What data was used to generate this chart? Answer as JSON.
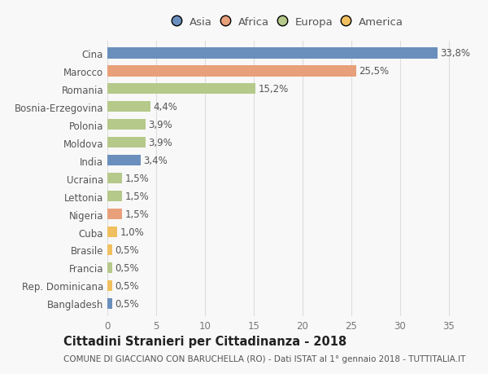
{
  "categories": [
    "Bangladesh",
    "Rep. Dominicana",
    "Francia",
    "Brasile",
    "Cuba",
    "Nigeria",
    "Lettonia",
    "Ucraina",
    "India",
    "Moldova",
    "Polonia",
    "Bosnia-Erzegovina",
    "Romania",
    "Marocco",
    "Cina"
  ],
  "values": [
    0.5,
    0.5,
    0.5,
    0.5,
    1.0,
    1.5,
    1.5,
    1.5,
    3.4,
    3.9,
    3.9,
    4.4,
    15.2,
    25.5,
    33.8
  ],
  "colors": [
    "#6a8fbd",
    "#f0c060",
    "#b5c98a",
    "#f0c060",
    "#f0c060",
    "#e8a07a",
    "#b5c98a",
    "#b5c98a",
    "#6a8fbd",
    "#b5c98a",
    "#b5c98a",
    "#b5c98a",
    "#b5c98a",
    "#e8a07a",
    "#6a8fbd"
  ],
  "labels": [
    "0,5%",
    "0,5%",
    "0,5%",
    "0,5%",
    "1,0%",
    "1,5%",
    "1,5%",
    "1,5%",
    "3,4%",
    "3,9%",
    "3,9%",
    "4,4%",
    "15,2%",
    "25,5%",
    "33,8%"
  ],
  "legend_labels": [
    "Asia",
    "Africa",
    "Europa",
    "America"
  ],
  "legend_colors": [
    "#6a8fbd",
    "#e8a07a",
    "#b5c98a",
    "#f0c060"
  ],
  "title": "Cittadini Stranieri per Cittadinanza - 2018",
  "subtitle": "COMUNE DI GIACCIANO CON BARUCHELLA (RO) - Dati ISTAT al 1° gennaio 2018 - TUTTITALIA.IT",
  "xlim": [
    0,
    37
  ],
  "xticks": [
    0,
    5,
    10,
    15,
    20,
    25,
    30,
    35
  ],
  "background_color": "#f8f8f8",
  "grid_color": "#dddddd",
  "bar_height": 0.6,
  "label_fontsize": 8.5,
  "title_fontsize": 10.5,
  "subtitle_fontsize": 7.5,
  "tick_fontsize": 8.5,
  "legend_fontsize": 9.5
}
